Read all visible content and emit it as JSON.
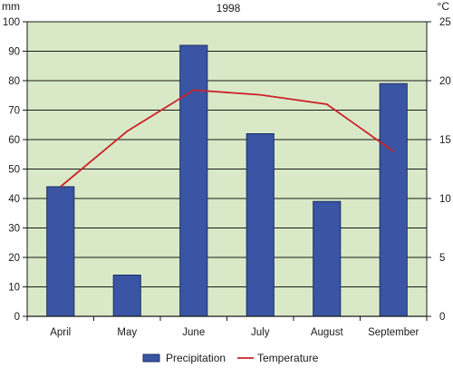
{
  "colors": {
    "plot_background": "#d9e9c7",
    "bar_fill": "#3955a3",
    "bar_stroke": "#1f2e66",
    "line": "#cc2229",
    "grid": "#1a1a1a"
  },
  "chart_data": {
    "type": "bar",
    "title": "1998",
    "categories": [
      "April",
      "May",
      "June",
      "July",
      "August",
      "September"
    ],
    "series": [
      {
        "name": "Precipitation",
        "type": "bar",
        "axis": "left",
        "values": [
          44,
          14,
          92,
          62,
          39,
          79
        ]
      },
      {
        "name": "Temperature",
        "type": "line",
        "axis": "right",
        "values": [
          11,
          15.7,
          19.2,
          18.8,
          18,
          14
        ]
      }
    ],
    "y_left": {
      "label": "mm",
      "ylim": [
        0,
        100
      ],
      "ticks": [
        "0",
        "10",
        "20",
        "30",
        "40",
        "50",
        "60",
        "70",
        "80",
        "90",
        "100"
      ]
    },
    "y_right": {
      "label": "°C",
      "ylim": [
        0,
        25
      ],
      "ticks": [
        "0",
        "5",
        "10",
        "15",
        "20",
        "25"
      ]
    },
    "grid": true,
    "legend": {
      "position": "bottom",
      "items": [
        "Precipitation",
        "Temperature"
      ]
    }
  }
}
